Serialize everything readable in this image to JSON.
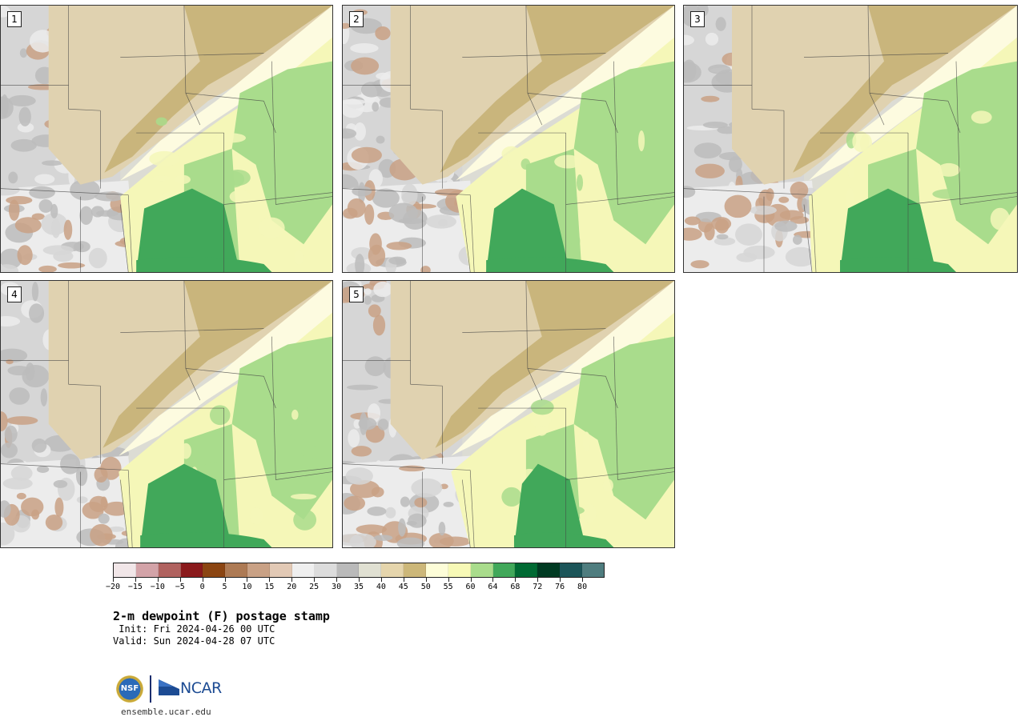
{
  "panels": [
    {
      "label": "1"
    },
    {
      "label": "2"
    },
    {
      "label": "3"
    },
    {
      "label": "4"
    },
    {
      "label": "5"
    }
  ],
  "colorbar": {
    "colors": [
      "#f1e6e8",
      "#d3a3a8",
      "#b0625f",
      "#8a1a1c",
      "#8b4512",
      "#ad7a54",
      "#c9a185",
      "#e2c9b5",
      "#efefef",
      "#dcdcdc",
      "#bababa",
      "#e0e0d2",
      "#e5d5ac",
      "#ccb779",
      "#fdfdd8",
      "#f7f9b6",
      "#a9dc8c",
      "#41a85a",
      "#006a33",
      "#003a22",
      "#1c5559",
      "#4f7d7f"
    ],
    "tick_labels": [
      "−20",
      "−15",
      "−10",
      "−5",
      "0",
      "5",
      "10",
      "15",
      "20",
      "25",
      "30",
      "35",
      "40",
      "45",
      "50",
      "55",
      "60",
      "64",
      "68",
      "72",
      "76",
      "80"
    ]
  },
  "title": "2-m dewpoint (F) postage stamp",
  "init_line": " Init: Fri 2024-04-26 00 UTC",
  "valid_line": "Valid: Sun 2024-04-28 07 UTC",
  "logos": {
    "nsf": "NSF",
    "ncar": "NCAR"
  },
  "footer_url": "ensemble.ucar.edu"
}
